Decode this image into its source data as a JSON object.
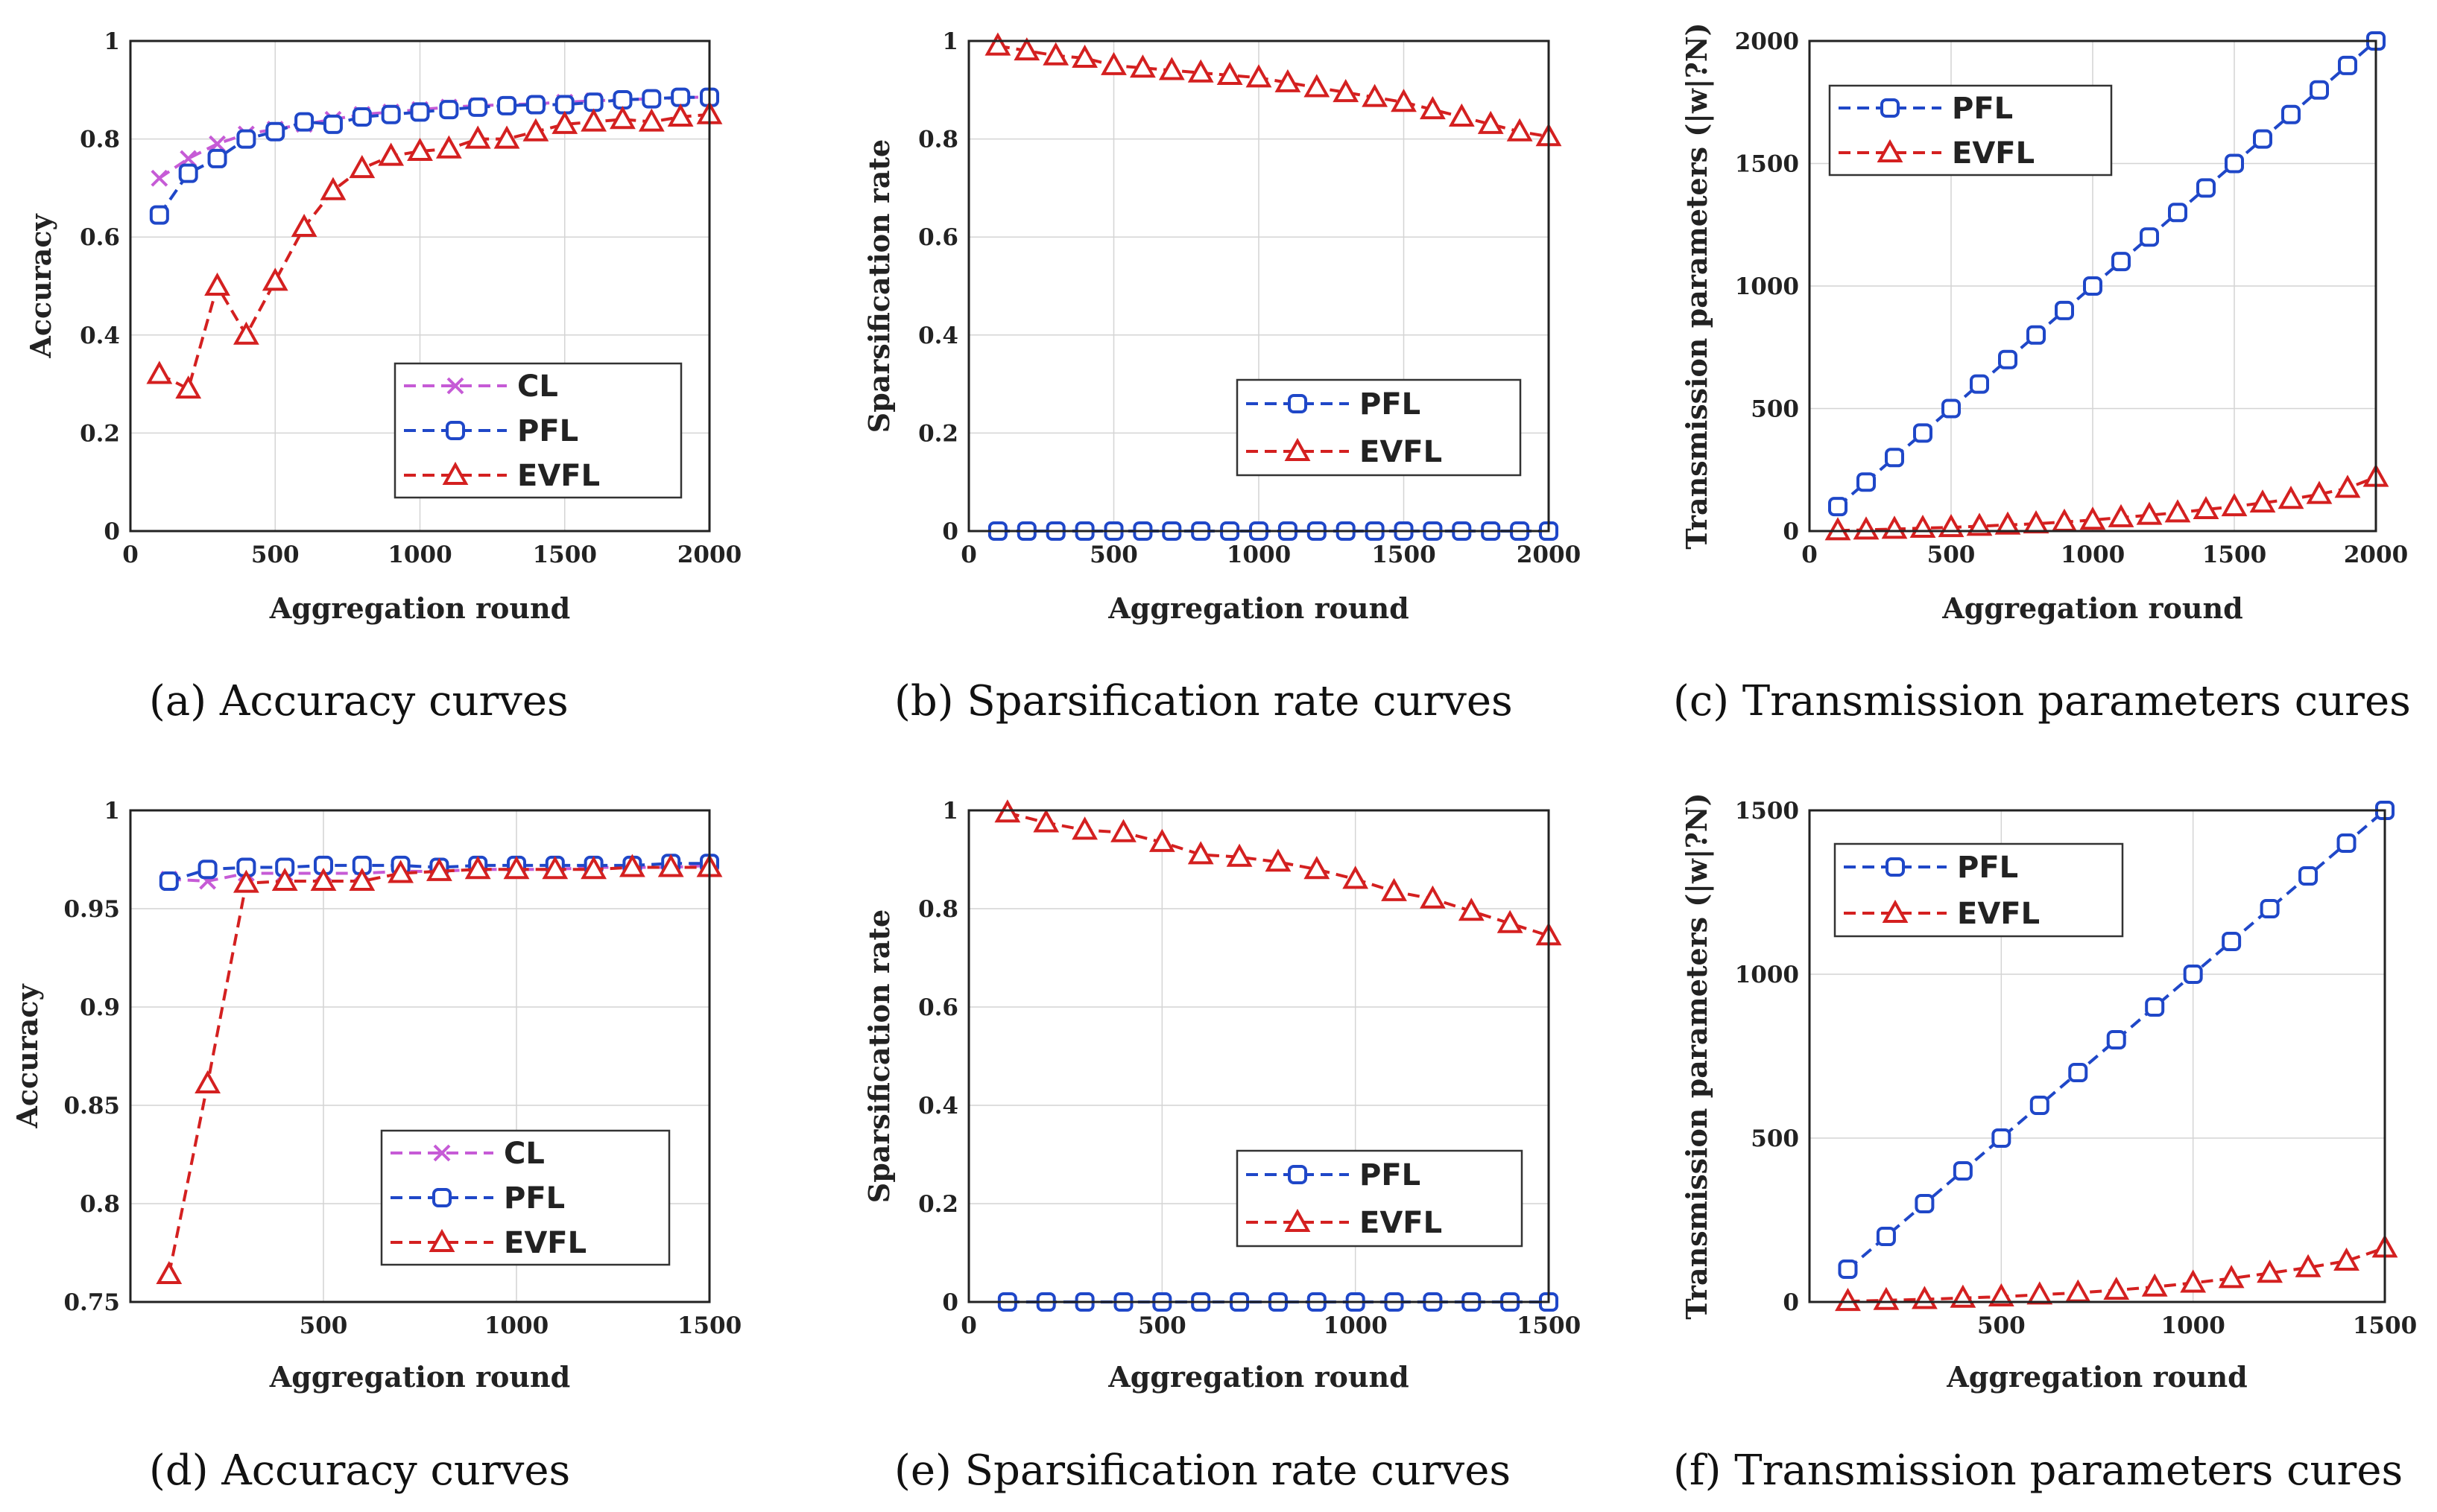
{
  "chart_data": [
    {
      "type": "line",
      "title": "",
      "caption_tag": "(a)",
      "caption": "Accuracy curves",
      "xlabel": "Aggregation round",
      "ylabel": "Accuracy",
      "xlim": [
        0,
        2000
      ],
      "ylim": [
        0,
        1
      ],
      "xticks": [
        0,
        500,
        1000,
        1500,
        2000
      ],
      "yticks": [
        0,
        0.2,
        0.4,
        0.6,
        0.8,
        1
      ],
      "ytick_labels": [
        "0",
        "0.2",
        "0.4",
        "0.6",
        "0.8",
        "1"
      ],
      "grid": true,
      "legend_position": "lower-right",
      "series": [
        {
          "name": "CL",
          "color": "#c65bd6",
          "marker": "x",
          "x": [
            100,
            200,
            300,
            400,
            500,
            600,
            700,
            800,
            900,
            1000,
            1100,
            1200,
            1300,
            1400,
            1500,
            1600,
            1700,
            1800,
            1900,
            2000
          ],
          "y": [
            0.72,
            0.76,
            0.79,
            0.81,
            0.82,
            0.83,
            0.84,
            0.85,
            0.855,
            0.86,
            0.865,
            0.868,
            0.87,
            0.872,
            0.875,
            0.878,
            0.88,
            0.882,
            0.884,
            0.886
          ]
        },
        {
          "name": "PFL",
          "color": "#1f47c8",
          "marker": "square",
          "x": [
            100,
            200,
            300,
            400,
            500,
            600,
            700,
            800,
            900,
            1000,
            1100,
            1200,
            1300,
            1400,
            1500,
            1600,
            1700,
            1800,
            1900,
            2000
          ],
          "y": [
            0.645,
            0.73,
            0.76,
            0.8,
            0.815,
            0.835,
            0.83,
            0.845,
            0.85,
            0.855,
            0.86,
            0.865,
            0.868,
            0.87,
            0.87,
            0.875,
            0.88,
            0.882,
            0.885,
            0.885
          ]
        },
        {
          "name": "EVFL",
          "color": "#d42020",
          "marker": "triangle",
          "x": [
            100,
            200,
            300,
            400,
            500,
            600,
            700,
            800,
            900,
            1000,
            1100,
            1200,
            1300,
            1400,
            1500,
            1600,
            1700,
            1800,
            1900,
            2000
          ],
          "y": [
            0.32,
            0.29,
            0.5,
            0.4,
            0.51,
            0.62,
            0.695,
            0.74,
            0.765,
            0.775,
            0.78,
            0.8,
            0.8,
            0.815,
            0.83,
            0.835,
            0.84,
            0.835,
            0.845,
            0.85
          ]
        }
      ]
    },
    {
      "type": "line",
      "title": "",
      "caption_tag": "(b)",
      "caption": "Sparsification rate curves",
      "xlabel": "Aggregation round",
      "ylabel": "Sparsification rate",
      "xlim": [
        0,
        2000
      ],
      "ylim": [
        0,
        1
      ],
      "xticks": [
        0,
        500,
        1000,
        1500,
        2000
      ],
      "yticks": [
        0,
        0.2,
        0.4,
        0.6,
        0.8,
        1
      ],
      "ytick_labels": [
        "0",
        "0.2",
        "0.4",
        "0.6",
        "0.8",
        "1"
      ],
      "grid": true,
      "legend_position": "center-right",
      "series": [
        {
          "name": "PFL",
          "color": "#1f47c8",
          "marker": "square",
          "x": [
            100,
            200,
            300,
            400,
            500,
            600,
            700,
            800,
            900,
            1000,
            1100,
            1200,
            1300,
            1400,
            1500,
            1600,
            1700,
            1800,
            1900,
            2000
          ],
          "y": [
            0,
            0,
            0,
            0,
            0,
            0,
            0,
            0,
            0,
            0,
            0,
            0,
            0,
            0,
            0,
            0,
            0,
            0,
            0,
            0
          ]
        },
        {
          "name": "EVFL",
          "color": "#d42020",
          "marker": "triangle",
          "x": [
            100,
            200,
            300,
            400,
            500,
            600,
            700,
            800,
            900,
            1000,
            1100,
            1200,
            1300,
            1400,
            1500,
            1600,
            1700,
            1800,
            1900,
            2000
          ],
          "y": [
            0.99,
            0.98,
            0.97,
            0.965,
            0.95,
            0.945,
            0.94,
            0.935,
            0.93,
            0.925,
            0.915,
            0.905,
            0.895,
            0.885,
            0.875,
            0.86,
            0.845,
            0.83,
            0.815,
            0.805
          ]
        }
      ]
    },
    {
      "type": "line",
      "title": "",
      "caption_tag": "(c)",
      "caption": "Transmission parameters cures",
      "xlabel": "Aggregation round",
      "ylabel": "Transmission parameters (|w|?N)",
      "xlim": [
        0,
        2000
      ],
      "ylim": [
        0,
        2000
      ],
      "xticks": [
        0,
        500,
        1000,
        1500,
        2000
      ],
      "yticks": [
        0,
        500,
        1000,
        1500,
        2000
      ],
      "ytick_labels": [
        "0",
        "500",
        "1000",
        "1500",
        "2000"
      ],
      "grid": true,
      "legend_position": "top-left",
      "series": [
        {
          "name": "PFL",
          "color": "#1f47c8",
          "marker": "square",
          "x": [
            100,
            200,
            300,
            400,
            500,
            600,
            700,
            800,
            900,
            1000,
            1100,
            1200,
            1300,
            1400,
            1500,
            1600,
            1700,
            1800,
            1900,
            2000
          ],
          "y": [
            100,
            200,
            300,
            400,
            500,
            600,
            700,
            800,
            900,
            1000,
            1100,
            1200,
            1300,
            1400,
            1500,
            1600,
            1700,
            1800,
            1900,
            2000
          ]
        },
        {
          "name": "EVFL",
          "color": "#d42020",
          "marker": "triangle",
          "x": [
            100,
            200,
            300,
            400,
            500,
            600,
            700,
            800,
            900,
            1000,
            1100,
            1200,
            1300,
            1400,
            1500,
            1600,
            1700,
            1800,
            1900,
            2000
          ],
          "y": [
            2,
            5,
            8,
            12,
            15,
            20,
            25,
            30,
            37,
            45,
            55,
            65,
            75,
            88,
            100,
            115,
            130,
            150,
            175,
            220
          ]
        }
      ]
    },
    {
      "type": "line",
      "title": "",
      "caption_tag": "(d)",
      "caption": "Accuracy curves",
      "xlabel": "Aggregation round",
      "ylabel": "Accuracy",
      "xlim": [
        0,
        1500
      ],
      "ylim": [
        0.75,
        1
      ],
      "xticks": [
        500,
        1000,
        1500
      ],
      "yticks": [
        0.75,
        0.8,
        0.85,
        0.9,
        0.95,
        1
      ],
      "ytick_labels": [
        "0.75",
        "0.8",
        "0.85",
        "0.9",
        "0.95",
        "1"
      ],
      "grid": true,
      "legend_position": "lower-right",
      "series": [
        {
          "name": "CL",
          "color": "#c65bd6",
          "marker": "x",
          "x": [
            100,
            200,
            300,
            400,
            500,
            600,
            700,
            800,
            900,
            1000,
            1100,
            1200,
            1300,
            1400,
            1500
          ],
          "y": [
            0.965,
            0.964,
            0.968,
            0.968,
            0.968,
            0.968,
            0.969,
            0.969,
            0.97,
            0.97,
            0.97,
            0.971,
            0.971,
            0.971,
            0.972
          ]
        },
        {
          "name": "PFL",
          "color": "#1f47c8",
          "marker": "square",
          "x": [
            100,
            200,
            300,
            400,
            500,
            600,
            700,
            800,
            900,
            1000,
            1100,
            1200,
            1300,
            1400,
            1500
          ],
          "y": [
            0.964,
            0.97,
            0.971,
            0.971,
            0.972,
            0.972,
            0.972,
            0.971,
            0.972,
            0.972,
            0.972,
            0.972,
            0.972,
            0.973,
            0.973
          ]
        },
        {
          "name": "EVFL",
          "color": "#d42020",
          "marker": "triangle",
          "x": [
            100,
            200,
            300,
            400,
            500,
            600,
            700,
            800,
            900,
            1000,
            1100,
            1200,
            1300,
            1400,
            1500
          ],
          "y": [
            0.764,
            0.861,
            0.963,
            0.964,
            0.964,
            0.964,
            0.968,
            0.969,
            0.97,
            0.97,
            0.97,
            0.97,
            0.971,
            0.971,
            0.971
          ]
        }
      ]
    },
    {
      "type": "line",
      "title": "",
      "caption_tag": "(e)",
      "caption": "Sparsification rate curves",
      "xlabel": "Aggregation round",
      "ylabel": "Sparsification rate",
      "xlim": [
        0,
        1500
      ],
      "ylim": [
        0,
        1
      ],
      "xticks": [
        0,
        500,
        1000,
        1500
      ],
      "yticks": [
        0,
        0.2,
        0.4,
        0.6,
        0.8,
        1
      ],
      "ytick_labels": [
        "0",
        "0.2",
        "0.4",
        "0.6",
        "0.8",
        "1"
      ],
      "grid": true,
      "legend_position": "lower-right",
      "series": [
        {
          "name": "PFL",
          "color": "#1f47c8",
          "marker": "square",
          "x": [
            100,
            200,
            300,
            400,
            500,
            600,
            700,
            800,
            900,
            1000,
            1100,
            1200,
            1300,
            1400,
            1500
          ],
          "y": [
            0,
            0,
            0,
            0,
            0,
            0,
            0,
            0,
            0,
            0,
            0,
            0,
            0,
            0,
            0
          ]
        },
        {
          "name": "EVFL",
          "color": "#d42020",
          "marker": "triangle",
          "x": [
            100,
            200,
            300,
            400,
            500,
            600,
            700,
            800,
            900,
            1000,
            1100,
            1200,
            1300,
            1400,
            1500
          ],
          "y": [
            0.995,
            0.975,
            0.96,
            0.955,
            0.935,
            0.91,
            0.905,
            0.895,
            0.88,
            0.86,
            0.835,
            0.82,
            0.795,
            0.77,
            0.745
          ]
        }
      ]
    },
    {
      "type": "line",
      "title": "",
      "caption_tag": "(f)",
      "caption": "Transmission parameters cures",
      "xlabel": "Aggregation round",
      "ylabel": "Transmission parameters (|w|?N)",
      "xlim": [
        0,
        1500
      ],
      "ylim": [
        0,
        1500
      ],
      "xticks": [
        500,
        1000,
        1500
      ],
      "yticks": [
        0,
        500,
        1000,
        1500
      ],
      "ytick_labels": [
        "0",
        "500",
        "1000",
        "1500"
      ],
      "grid": true,
      "legend_position": "top-left",
      "series": [
        {
          "name": "PFL",
          "color": "#1f47c8",
          "marker": "square",
          "x": [
            100,
            200,
            300,
            400,
            500,
            600,
            700,
            800,
            900,
            1000,
            1100,
            1200,
            1300,
            1400,
            1500
          ],
          "y": [
            100,
            200,
            300,
            400,
            500,
            600,
            700,
            800,
            900,
            1000,
            1100,
            1200,
            1300,
            1400,
            1500
          ]
        },
        {
          "name": "EVFL",
          "color": "#d42020",
          "marker": "triangle",
          "x": [
            100,
            200,
            300,
            400,
            500,
            600,
            700,
            800,
            900,
            1000,
            1100,
            1200,
            1300,
            1400,
            1500
          ],
          "y": [
            2,
            5,
            8,
            12,
            16,
            22,
            28,
            36,
            46,
            58,
            72,
            88,
            105,
            125,
            165
          ]
        }
      ]
    }
  ]
}
